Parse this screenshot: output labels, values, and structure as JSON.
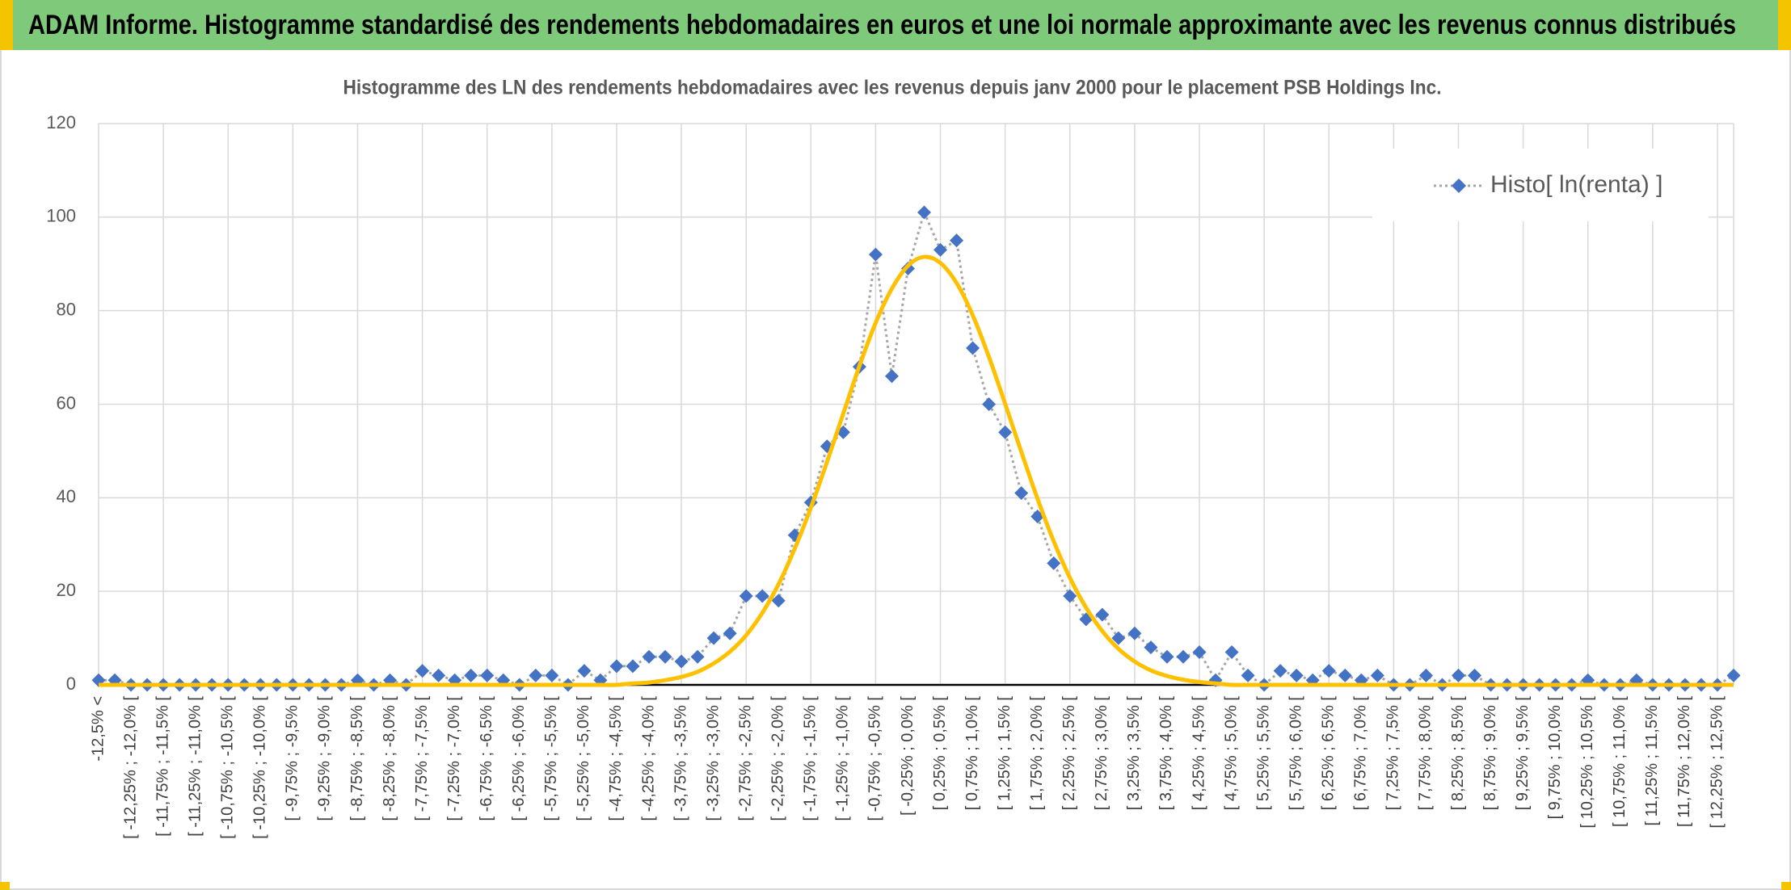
{
  "header": {
    "title": "ADAM Informe. Histogramme standardisé des rendements hebdomadaires en euros et une loi normale approximante avec les revenus connus distribués"
  },
  "chart_data": {
    "type": "line",
    "title": "Histogramme des LN des rendements hebdomadaires avec les revenus depuis janv 2000 pour le placement PSB Holdings Inc.",
    "categories": [
      "-12,5% <",
      null,
      "[ -12,25% ; -12,0% [",
      null,
      "[ -11,75% ; -11,5% [",
      null,
      "[ -11,25% ; -11,0% [",
      null,
      "[ -10,75% ; -10,5% [",
      null,
      "[ -10,25% ; -10,0% [",
      null,
      "[ -9,75% ; -9,5% [",
      null,
      "[ -9,25% ; -9,0% [",
      null,
      "[ -8,75% ; -8,5% [",
      null,
      "[ -8,25% ; -8,0% [",
      null,
      "[ -7,75% ; -7,5% [",
      null,
      "[ -7,25% ; -7,0% [",
      null,
      "[ -6,75% ; -6,5% [",
      null,
      "[ -6,25% ; -6,0% [",
      null,
      "[ -5,75% ; -5,5% [",
      null,
      "[ -5,25% ; -5,0% [",
      null,
      "[ -4,75% ; -4,5% [",
      null,
      "[ -4,25% ; -4,0% [",
      null,
      "[ -3,75% ; -3,5% [",
      null,
      "[ -3,25% ; -3,0% [",
      null,
      "[ -2,75% ; -2,5% [",
      null,
      "[ -2,25% ; -2,0% [",
      null,
      "[ -1,75% ; -1,5% [",
      null,
      "[ -1,25% ; -1,0% [",
      null,
      "[ -0,75% ; -0,5% [",
      null,
      "[ -0,25% ; 0,0% [",
      null,
      "[ 0,25% ; 0,5% [",
      null,
      "[ 0,75% ; 1,0% [",
      null,
      "[ 1,25% ; 1,5% [",
      null,
      "[ 1,75% ; 2,0% [",
      null,
      "[ 2,25% ; 2,5% [",
      null,
      "[ 2,75% ; 3,0% [",
      null,
      "[ 3,25% ; 3,5% [",
      null,
      "[ 3,75% ; 4,0% [",
      null,
      "[ 4,25% ; 4,5% [",
      null,
      "[ 4,75% ; 5,0% [",
      null,
      "[ 5,25% ; 5,5% [",
      null,
      "[ 5,75% ; 6,0% [",
      null,
      "[ 6,25% ; 6,5% [",
      null,
      "[ 6,75% ; 7,0% [",
      null,
      "[ 7,25% ; 7,5% [",
      null,
      "[ 7,75% ; 8,0% [",
      null,
      "[ 8,25% ; 8,5% [",
      null,
      "[ 8,75% ; 9,0% [",
      null,
      "[ 9,25% ; 9,5% [",
      null,
      "[ 9,75% ; 10,0% [",
      null,
      "[ 10,25% ; 10,5% [",
      null,
      "[ 10,75% ; 11,0% [",
      null,
      "[ 11,25% ; 11,5% [",
      null,
      "[ 11,75% ; 12,0% [",
      null,
      "[ 12,25% ; 12,5% [",
      null
    ],
    "series": [
      {
        "name": "Histo[ ln(renta) ]",
        "color": "#4472c4",
        "line_color": "#a6a6a6",
        "marker": "diamond",
        "line_style": "dotted",
        "values": [
          1,
          1,
          0,
          0,
          0,
          0,
          0,
          0,
          0,
          0,
          0,
          0,
          0,
          0,
          0,
          0,
          1,
          0,
          1,
          0,
          3,
          2,
          1,
          2,
          2,
          1,
          0,
          2,
          2,
          0,
          3,
          1,
          4,
          4,
          6,
          6,
          5,
          6,
          10,
          11,
          19,
          19,
          18,
          32,
          39,
          51,
          54,
          68,
          92,
          66,
          89,
          101,
          93,
          95,
          72,
          60,
          54,
          41,
          36,
          26,
          19,
          14,
          15,
          10,
          11,
          8,
          6,
          6,
          7,
          1,
          7,
          2,
          0,
          3,
          2,
          1,
          3,
          2,
          1,
          2,
          0,
          0,
          2,
          0,
          2,
          2,
          0,
          0,
          0,
          0,
          0,
          0,
          1,
          0,
          0,
          1,
          0,
          0,
          0,
          0,
          0,
          2
        ]
      },
      {
        "color": "#ffc000",
        "line_style": "smooth",
        "values": [
          0,
          0,
          0,
          0,
          0,
          0,
          0,
          0,
          0,
          0,
          0,
          0,
          0,
          0,
          0,
          0,
          0,
          0,
          0,
          0,
          0,
          0,
          0,
          0,
          0,
          0,
          0,
          0,
          0,
          0,
          0,
          0,
          0,
          0.3,
          0.5,
          1.0,
          1.7,
          2.8,
          4.6,
          7.1,
          10.6,
          15.4,
          21.5,
          29.1,
          37.9,
          47.7,
          58.0,
          68.2,
          77.4,
          84.7,
          89.6,
          91.5,
          90.2,
          85.9,
          79.0,
          70.1,
          60.1,
          49.8,
          39.8,
          30.7,
          22.9,
          16.5,
          11.5,
          7.7,
          5.0,
          3.1,
          1.9,
          1.1,
          0.6,
          0.3,
          0,
          0,
          0,
          0,
          0,
          0,
          0,
          0,
          0,
          0,
          0,
          0,
          0,
          0,
          0,
          0,
          0,
          0,
          0,
          0,
          0,
          0,
          0,
          0,
          0,
          0,
          0,
          0,
          0,
          0,
          0,
          0
        ]
      }
    ],
    "ylim": [
      0,
      120
    ],
    "yticks": [
      0,
      20,
      40,
      60,
      80,
      100,
      120
    ],
    "grid": true,
    "legend": "top-right"
  }
}
